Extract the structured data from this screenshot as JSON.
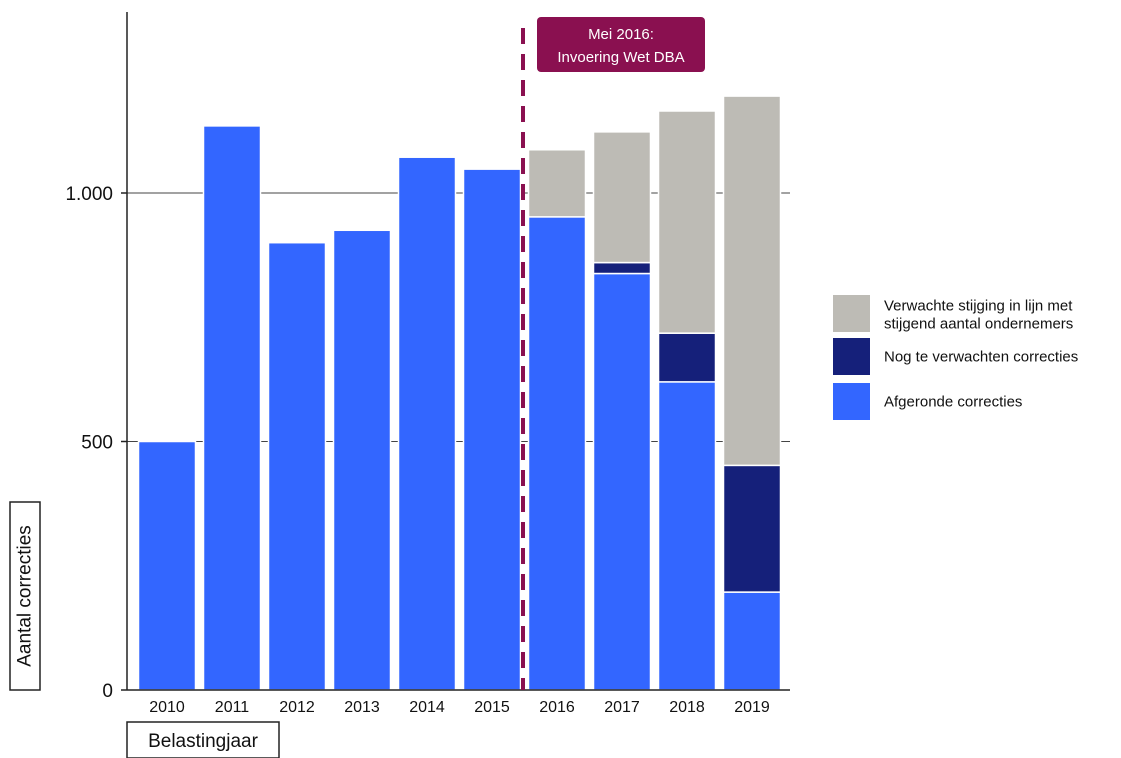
{
  "chart_data": {
    "type": "bar",
    "stacked": true,
    "categories": [
      "2010",
      "2011",
      "2012",
      "2013",
      "2014",
      "2015",
      "2016",
      "2017",
      "2018",
      "2019"
    ],
    "series": [
      {
        "name": "Afgeronde correcties",
        "color": "#3366ff",
        "values": [
          500,
          1135,
          900,
          925,
          1072,
          1048,
          952,
          838,
          620,
          197
        ]
      },
      {
        "name": "Nog te verwachten correcties",
        "color": "#15207a",
        "values": [
          0,
          0,
          0,
          0,
          0,
          0,
          0,
          22,
          98,
          255
        ]
      },
      {
        "name": "Verwachte stijging in lijn met stijgend aantal ondernemers",
        "color": "#bdbbb5",
        "values": [
          0,
          0,
          0,
          0,
          0,
          0,
          135,
          263,
          447,
          743
        ]
      }
    ],
    "legend_order": [
      2,
      1,
      0
    ],
    "legend_position": "right",
    "xlabel": "Belastingjaar",
    "ylabel": "Aantal correcties",
    "ylim": [
      0,
      1250
    ],
    "yticks": [
      0,
      500,
      1000
    ],
    "ytick_labels": [
      "0",
      "500",
      "1.000"
    ],
    "grid": "horizontal",
    "annotation": {
      "lines": [
        "Mei 2016:",
        "Invoering Wet DBA"
      ],
      "marker": "dashed vertical line between 2015 and 2016",
      "color": "#8a1050"
    }
  }
}
